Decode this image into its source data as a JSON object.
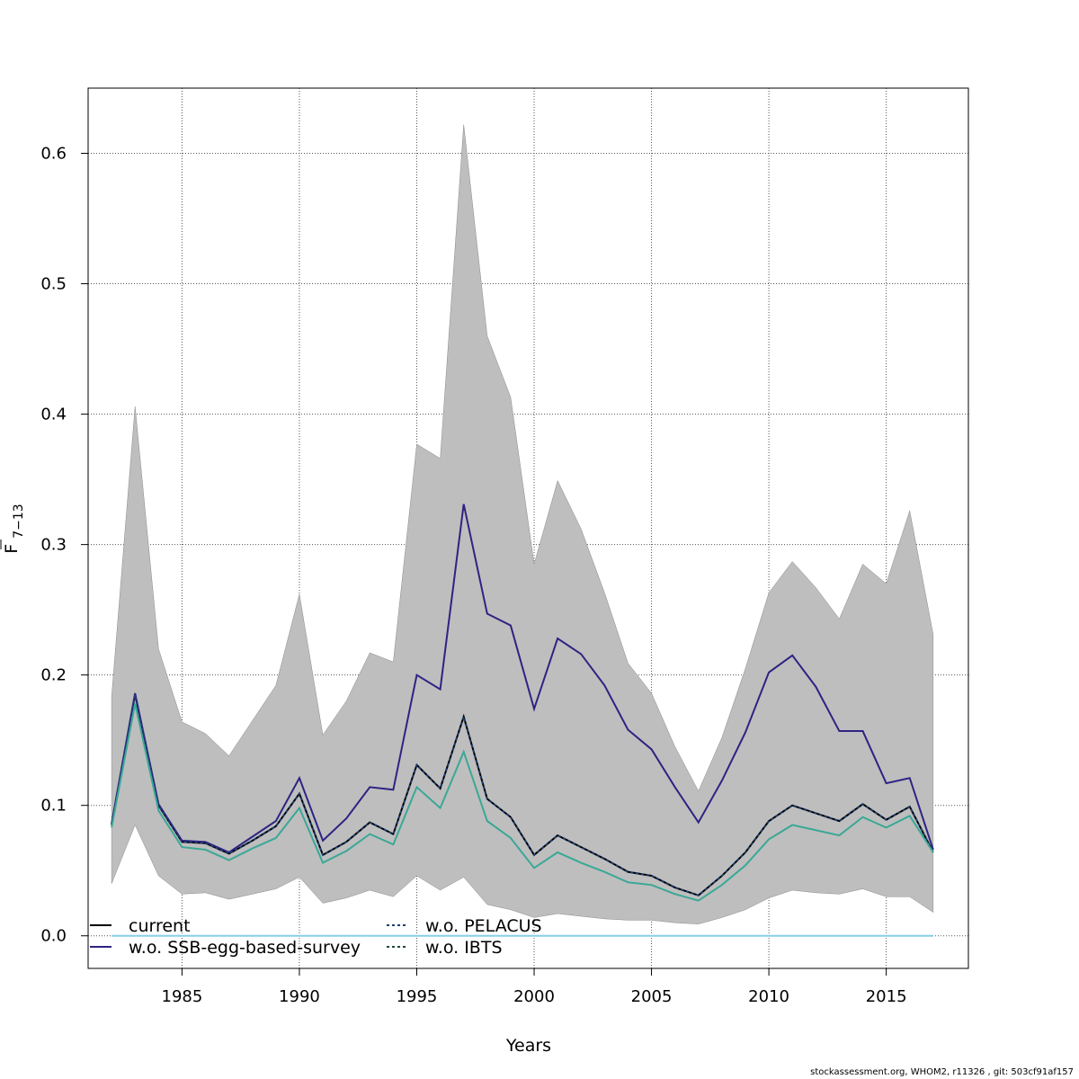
{
  "chart_data": {
    "type": "line",
    "ylabel": "F̄7−13",
    "ylabel_main": "F",
    "ylabel_sub": "7−13",
    "xlabel": "Years",
    "xlim": [
      1981,
      2018.5
    ],
    "ylim": [
      -0.025,
      0.65
    ],
    "x_ticks": [
      1985,
      1990,
      1995,
      2000,
      2005,
      2010,
      2015
    ],
    "y_ticks": [
      0.0,
      0.1,
      0.2,
      0.3,
      0.4,
      0.5,
      0.6
    ],
    "y_tick_labels": [
      "0.0",
      "0.1",
      "0.2",
      "0.3",
      "0.4",
      "0.5",
      "0.6"
    ],
    "grid": true,
    "legend_position": "bottom-left",
    "x": [
      1982,
      1983,
      1984,
      1985,
      1986,
      1987,
      1988,
      1989,
      1990,
      1991,
      1992,
      1993,
      1994,
      1995,
      1996,
      1997,
      1998,
      1999,
      2000,
      2001,
      2002,
      2003,
      2004,
      2005,
      2006,
      2007,
      2008,
      2009,
      2010,
      2011,
      2012,
      2013,
      2014,
      2015,
      2016,
      2017
    ],
    "band": {
      "upper": [
        0.183,
        0.406,
        0.22,
        0.164,
        0.155,
        0.138,
        0.165,
        0.192,
        0.262,
        0.154,
        0.18,
        0.217,
        0.21,
        0.377,
        0.366,
        0.622,
        0.46,
        0.413,
        0.285,
        0.349,
        0.312,
        0.263,
        0.209,
        0.186,
        0.145,
        0.111,
        0.152,
        0.205,
        0.263,
        0.287,
        0.267,
        0.243,
        0.285,
        0.27,
        0.326,
        0.231
      ],
      "lower": [
        0.04,
        0.085,
        0.046,
        0.032,
        0.033,
        0.028,
        0.032,
        0.036,
        0.045,
        0.025,
        0.029,
        0.035,
        0.03,
        0.046,
        0.035,
        0.045,
        0.024,
        0.02,
        0.014,
        0.017,
        0.015,
        0.013,
        0.012,
        0.012,
        0.01,
        0.009,
        0.014,
        0.02,
        0.029,
        0.035,
        0.033,
        0.032,
        0.036,
        0.03,
        0.03,
        0.018
      ],
      "color": "#bebebe"
    },
    "series": [
      {
        "name": "current",
        "color": "#000000",
        "dash": "",
        "values": [
          0.085,
          0.185,
          0.1,
          0.072,
          0.071,
          0.063,
          0.073,
          0.084,
          0.109,
          0.062,
          0.072,
          0.087,
          0.078,
          0.131,
          0.113,
          0.168,
          0.105,
          0.091,
          0.062,
          0.077,
          0.068,
          0.059,
          0.049,
          0.046,
          0.037,
          0.031,
          0.046,
          0.064,
          0.088,
          0.1,
          0.094,
          0.088,
          0.101,
          0.089,
          0.099,
          0.064
        ]
      },
      {
        "name": "w.o. SSB-egg-based-survey",
        "color": "#2e2383",
        "dash": "",
        "values": [
          0.086,
          0.186,
          0.101,
          0.073,
          0.072,
          0.064,
          0.076,
          0.088,
          0.121,
          0.073,
          0.09,
          0.114,
          0.112,
          0.2,
          0.189,
          0.331,
          0.247,
          0.238,
          0.174,
          0.228,
          0.216,
          0.192,
          0.158,
          0.143,
          0.114,
          0.087,
          0.119,
          0.156,
          0.202,
          0.215,
          0.191,
          0.157,
          0.157,
          0.117,
          0.121,
          0.066
        ]
      },
      {
        "name": "w.o. PELACUS",
        "color": "#87ceeb",
        "dash": "",
        "values": [
          0,
          0,
          0,
          0,
          0,
          0,
          0,
          0,
          0,
          0,
          0,
          0,
          0,
          0,
          0,
          0,
          0,
          0,
          0,
          0,
          0,
          0,
          0,
          0,
          0,
          0,
          0,
          0,
          0,
          0,
          0,
          0,
          0,
          0,
          0,
          0
        ]
      },
      {
        "name": "w.o. PELACUS",
        "color": "#1f3f70",
        "dash": "3,3",
        "values": [
          0.085,
          0.185,
          0.1,
          0.072,
          0.071,
          0.063,
          0.073,
          0.084,
          0.109,
          0.062,
          0.072,
          0.087,
          0.078,
          0.131,
          0.113,
          0.168,
          0.105,
          0.091,
          0.062,
          0.077,
          0.068,
          0.059,
          0.049,
          0.046,
          0.037,
          0.031,
          0.046,
          0.064,
          0.088,
          0.1,
          0.094,
          0.088,
          0.101,
          0.089,
          0.099,
          0.064
        ]
      },
      {
        "name": "w.o. IBTS",
        "color": "#3aa896",
        "dash": "",
        "values": [
          0.083,
          0.178,
          0.096,
          0.068,
          0.066,
          0.058,
          0.067,
          0.075,
          0.098,
          0.056,
          0.065,
          0.078,
          0.07,
          0.114,
          0.098,
          0.141,
          0.088,
          0.075,
          0.052,
          0.064,
          0.056,
          0.049,
          0.041,
          0.039,
          0.032,
          0.027,
          0.039,
          0.054,
          0.074,
          0.085,
          0.081,
          0.077,
          0.091,
          0.083,
          0.092,
          0.064
        ]
      }
    ],
    "legend": [
      {
        "label": "current",
        "color": "#000000",
        "dash": ""
      },
      {
        "label": "w.o. SSB-egg-based-survey",
        "color": "#2e2383",
        "dash": ""
      },
      {
        "label": "w.o. PELACUS",
        "color": "#1f3f70",
        "dash": "3,3"
      },
      {
        "label": "w.o. IBTS",
        "color": "#1f4a3a",
        "dash": "3,3"
      }
    ]
  },
  "footer": "stockassessment.org, WHOM2, r11326 , git: 503cf91af157"
}
